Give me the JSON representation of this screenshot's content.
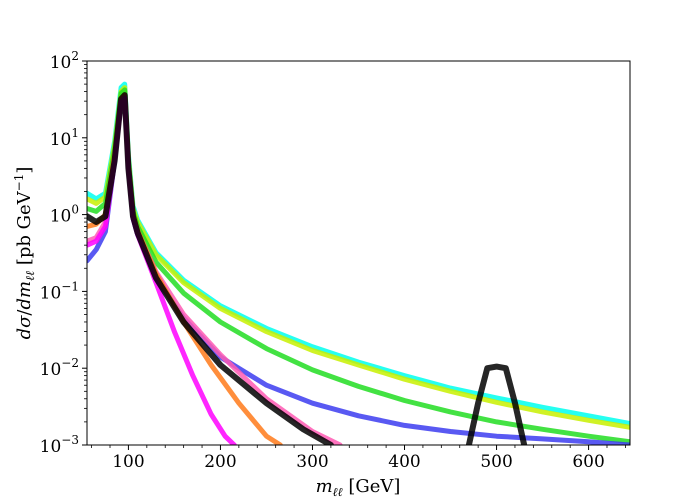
{
  "chart_data": {
    "type": "line",
    "title": "",
    "xlabel": "m_ℓℓ [GeV]",
    "ylabel": "dσ/dm_ℓℓ [pb GeV^−1]",
    "xlim": [
      55,
      645
    ],
    "ylim": [
      0.001,
      100
    ],
    "yscale": "log",
    "grid": false,
    "legend": "none",
    "x_ticks": [
      100,
      200,
      300,
      400,
      500,
      600
    ],
    "x_tick_labels": [
      "100",
      "200",
      "300",
      "400",
      "500",
      "600"
    ],
    "y_ticks": [
      0.001,
      0.01,
      0.1,
      1,
      10,
      100
    ],
    "y_tick_labels": [
      {
        "base": "10",
        "exp": "−3"
      },
      {
        "base": "10",
        "exp": "−2"
      },
      {
        "base": "10",
        "exp": "−1"
      },
      {
        "base": "10",
        "exp": "0"
      },
      {
        "base": "10",
        "exp": "1"
      },
      {
        "base": "10",
        "exp": "2"
      }
    ],
    "series": [
      {
        "color": "#00ffee",
        "x": [
          55,
          65,
          75,
          85,
          92,
          96,
          100,
          105,
          110,
          130,
          160,
          200,
          250,
          300,
          350,
          400,
          450,
          500,
          550,
          600,
          645
        ],
        "y": [
          1.9,
          1.6,
          1.9,
          9,
          45,
          50,
          6,
          1.3,
          0.85,
          0.32,
          0.14,
          0.065,
          0.033,
          0.019,
          0.012,
          0.008,
          0.0055,
          0.0041,
          0.0031,
          0.0024,
          0.0019
        ]
      },
      {
        "color": "#c8f000",
        "x": [
          55,
          65,
          75,
          85,
          92,
          96,
          100,
          105,
          110,
          130,
          160,
          200,
          250,
          300,
          350,
          400,
          450,
          500,
          550,
          600,
          645
        ],
        "y": [
          1.6,
          1.4,
          1.7,
          8,
          40,
          45,
          5.5,
          1.2,
          0.8,
          0.3,
          0.13,
          0.06,
          0.03,
          0.017,
          0.011,
          0.0072,
          0.005,
          0.0036,
          0.0027,
          0.0021,
          0.0017
        ]
      },
      {
        "color": "#22dd22",
        "x": [
          55,
          65,
          75,
          85,
          92,
          96,
          100,
          105,
          110,
          130,
          160,
          200,
          250,
          300,
          350,
          400,
          450,
          500,
          550,
          600,
          645
        ],
        "y": [
          1.2,
          1.1,
          1.4,
          7,
          38,
          42,
          5,
          1.1,
          0.7,
          0.24,
          0.095,
          0.04,
          0.018,
          0.0095,
          0.0058,
          0.0038,
          0.0027,
          0.002,
          0.0016,
          0.0013,
          0.0011
        ]
      },
      {
        "color": "#3c3cf0",
        "x": [
          55,
          65,
          75,
          85,
          92,
          96,
          100,
          105,
          110,
          130,
          160,
          200,
          250,
          300,
          350,
          400,
          450,
          500,
          550,
          600,
          645
        ],
        "y": [
          0.25,
          0.35,
          0.6,
          5,
          30,
          35,
          4,
          0.9,
          0.55,
          0.15,
          0.045,
          0.014,
          0.006,
          0.0035,
          0.0024,
          0.0018,
          0.0015,
          0.0013,
          0.0012,
          0.0011,
          0.001
        ]
      },
      {
        "color": "#ff5ab4",
        "x": [
          55,
          65,
          75,
          85,
          92,
          96,
          100,
          105,
          110,
          130,
          160,
          200,
          250,
          300,
          330
        ],
        "y": [
          0.45,
          0.5,
          0.8,
          5.5,
          30,
          34,
          4.2,
          0.95,
          0.6,
          0.18,
          0.05,
          0.015,
          0.004,
          0.0015,
          0.001
        ]
      },
      {
        "color": "#ff7a1a",
        "x": [
          55,
          65,
          75,
          85,
          92,
          96,
          100,
          105,
          110,
          130,
          160,
          190,
          220,
          250,
          265
        ],
        "y": [
          0.7,
          0.75,
          1.0,
          6,
          32,
          36,
          4.4,
          1.0,
          0.62,
          0.17,
          0.04,
          0.011,
          0.0035,
          0.0013,
          0.001
        ]
      },
      {
        "color": "#ff00ff",
        "x": [
          55,
          65,
          75,
          85,
          92,
          96,
          100,
          105,
          110,
          130,
          150,
          170,
          190,
          205,
          215
        ],
        "y": [
          0.4,
          0.45,
          0.7,
          5,
          29,
          33,
          4,
          0.9,
          0.55,
          0.13,
          0.03,
          0.008,
          0.0025,
          0.0013,
          0.001
        ]
      },
      {
        "color": "#000000",
        "x": [
          55,
          65,
          75,
          85,
          92,
          96,
          100,
          105,
          110,
          130,
          160,
          200,
          250,
          290,
          320
        ],
        "y": [
          0.95,
          0.8,
          0.95,
          5,
          32,
          36,
          4,
          0.95,
          0.58,
          0.15,
          0.04,
          0.011,
          0.0035,
          0.0016,
          0.001
        ]
      },
      {
        "color": "#000000",
        "x": [
          470,
          480,
          490,
          500,
          510,
          520,
          530
        ],
        "y": [
          0.001,
          0.0035,
          0.01,
          0.0105,
          0.01,
          0.0035,
          0.001
        ]
      }
    ]
  }
}
